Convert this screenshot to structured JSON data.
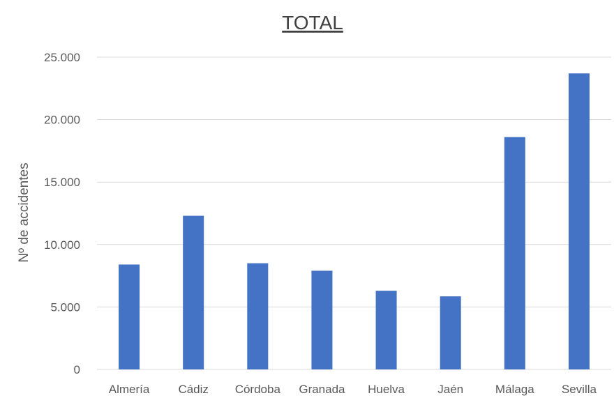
{
  "chart_data": {
    "type": "bar",
    "title": "TOTAL",
    "xlabel": "",
    "ylabel": "Nº de accidentes",
    "categories": [
      "Almería",
      "Cádiz",
      "Córdoba",
      "Granada",
      "Huelva",
      "Jaén",
      "Málaga",
      "Sevilla"
    ],
    "values": [
      8400,
      12300,
      8500,
      7900,
      6300,
      5850,
      18600,
      23700
    ],
    "ylim": [
      0,
      25000
    ],
    "yticks": [
      0,
      5000,
      10000,
      15000,
      20000,
      25000
    ],
    "ytick_labels": [
      "0",
      "5.000",
      "10.000",
      "15.000",
      "20.000",
      "25.000"
    ],
    "grid": true,
    "legend": "none",
    "colors": {
      "bar": "#4472c4",
      "grid": "#d9d9d9",
      "text": "#595959",
      "title": "#404040"
    }
  }
}
